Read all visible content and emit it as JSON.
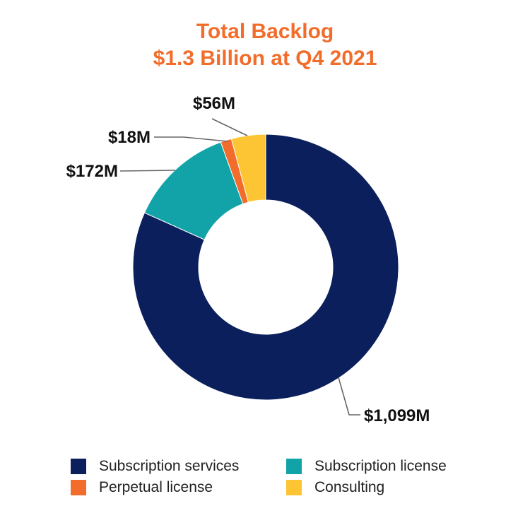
{
  "chart_data": {
    "type": "pie",
    "title": "Total Backlog",
    "subtitle": "$1.3 Billion at Q4 2021",
    "categories": [
      "Subscription services",
      "Subscription license",
      "Perpetual license",
      "Consulting"
    ],
    "values": [
      1099,
      172,
      18,
      56
    ],
    "data_labels": [
      "$1,099M",
      "$172M",
      "$18M",
      "$56M"
    ],
    "colors": [
      "#0b1f5c",
      "#12a3a8",
      "#f26d2b",
      "#fdc533"
    ],
    "donut": true,
    "legend_position": "bottom"
  },
  "legend": [
    {
      "label": "Subscription services",
      "color": "#0b1f5c"
    },
    {
      "label": "Subscription license",
      "color": "#12a3a8"
    },
    {
      "label": "Perpetual license",
      "color": "#f26d2b"
    },
    {
      "label": "Consulting",
      "color": "#fdc533"
    }
  ]
}
